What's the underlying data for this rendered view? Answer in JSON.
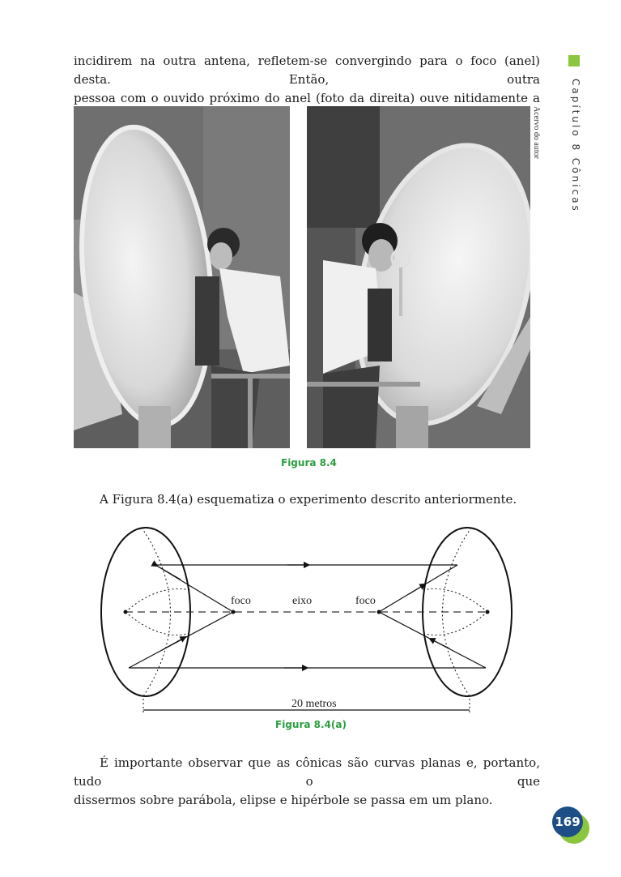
{
  "intro_paragraph": {
    "line1": "incidirem na outra antena, refletem-se convergindo para o foco (anel) desta. Então, outra",
    "line2": "pessoa com o ouvido próximo do anel (foto da direita) ouve nitidamente a primeira."
  },
  "sidebar": {
    "chapter_label": "Capítulo 8  Cônicas",
    "accent_color": "#8cc63f"
  },
  "photo_credit": "Acervo do autor",
  "figure_caption": "Figura 8.4",
  "paragraph_two": "A Figura 8.4(a) esquematiza o experimento descrito anteriormente.",
  "diagram": {
    "label_foco_left": "foco",
    "label_eixo": "eixo",
    "label_foco_right": "foco",
    "distance_label": "20 metros"
  },
  "diagram_caption": "Figura 8.4(a)",
  "closing_paragraph": {
    "line1": "É importante observar que as cônicas são curvas planas e, portanto, tudo o que",
    "line2": "dissermos sobre parábola, elipse e hipérbole se passa em um plano."
  },
  "page_number": "169",
  "colors": {
    "caption_green": "#2a9d3e",
    "badge_blue": "#1d4f86",
    "badge_green": "#8cc63f"
  }
}
